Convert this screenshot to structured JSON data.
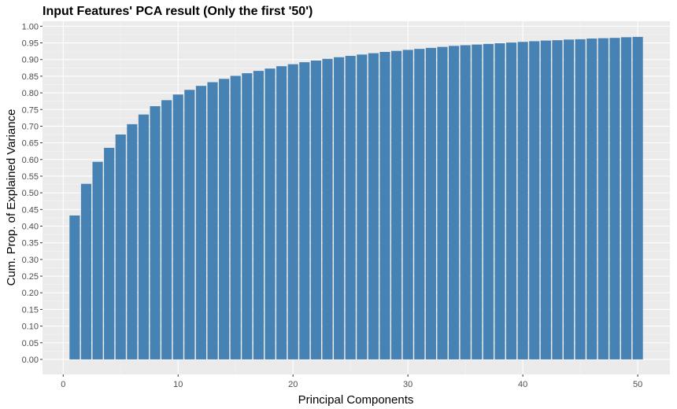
{
  "chart_data": {
    "type": "bar",
    "title": "Input Features' PCA result (Only the first '50')",
    "xlabel": "Principal Components",
    "ylabel": "Cum. Prop. of Explained Variance",
    "x": [
      1,
      2,
      3,
      4,
      5,
      6,
      7,
      8,
      9,
      10,
      11,
      12,
      13,
      14,
      15,
      16,
      17,
      18,
      19,
      20,
      21,
      22,
      23,
      24,
      25,
      26,
      27,
      28,
      29,
      30,
      31,
      32,
      33,
      34,
      35,
      36,
      37,
      38,
      39,
      40,
      41,
      42,
      43,
      44,
      45,
      46,
      47,
      48,
      49,
      50
    ],
    "values": [
      0.432,
      0.527,
      0.593,
      0.635,
      0.675,
      0.706,
      0.735,
      0.76,
      0.778,
      0.795,
      0.809,
      0.821,
      0.832,
      0.842,
      0.851,
      0.859,
      0.866,
      0.873,
      0.88,
      0.886,
      0.892,
      0.897,
      0.902,
      0.907,
      0.911,
      0.915,
      0.919,
      0.923,
      0.926,
      0.929,
      0.932,
      0.935,
      0.938,
      0.941,
      0.943,
      0.945,
      0.947,
      0.949,
      0.951,
      0.953,
      0.955,
      0.957,
      0.958,
      0.96,
      0.961,
      0.963,
      0.964,
      0.965,
      0.967,
      0.968
    ],
    "xlim": [
      -1.8,
      52.8
    ],
    "ylim": [
      -0.045,
      1.015
    ],
    "x_ticks": [
      0,
      10,
      20,
      30,
      40,
      50
    ],
    "x_tick_labels": [
      "0",
      "10",
      "20",
      "30",
      "40",
      "50"
    ],
    "y_ticks": [
      0,
      0.05,
      0.1,
      0.15,
      0.2,
      0.25,
      0.3,
      0.35,
      0.4,
      0.45,
      0.5,
      0.55,
      0.6,
      0.65,
      0.7,
      0.75,
      0.8,
      0.85,
      0.9,
      0.95,
      1.0
    ],
    "y_tick_labels": [
      "0.00",
      "0.05",
      "0.10",
      "0.15",
      "0.20",
      "0.25",
      "0.30",
      "0.35",
      "0.40",
      "0.45",
      "0.50",
      "0.55",
      "0.60",
      "0.65",
      "0.70",
      "0.75",
      "0.80",
      "0.85",
      "0.90",
      "0.95",
      "1.00"
    ],
    "grid": true,
    "legend": "none",
    "colors": {
      "bar": "#4682B4",
      "panel_background": "#EBEBEB",
      "grid_major": "#FFFFFF",
      "grid_minor": "#F5F5F5",
      "tick_text": "#4D4D4D",
      "tick_mark": "#333333"
    }
  }
}
